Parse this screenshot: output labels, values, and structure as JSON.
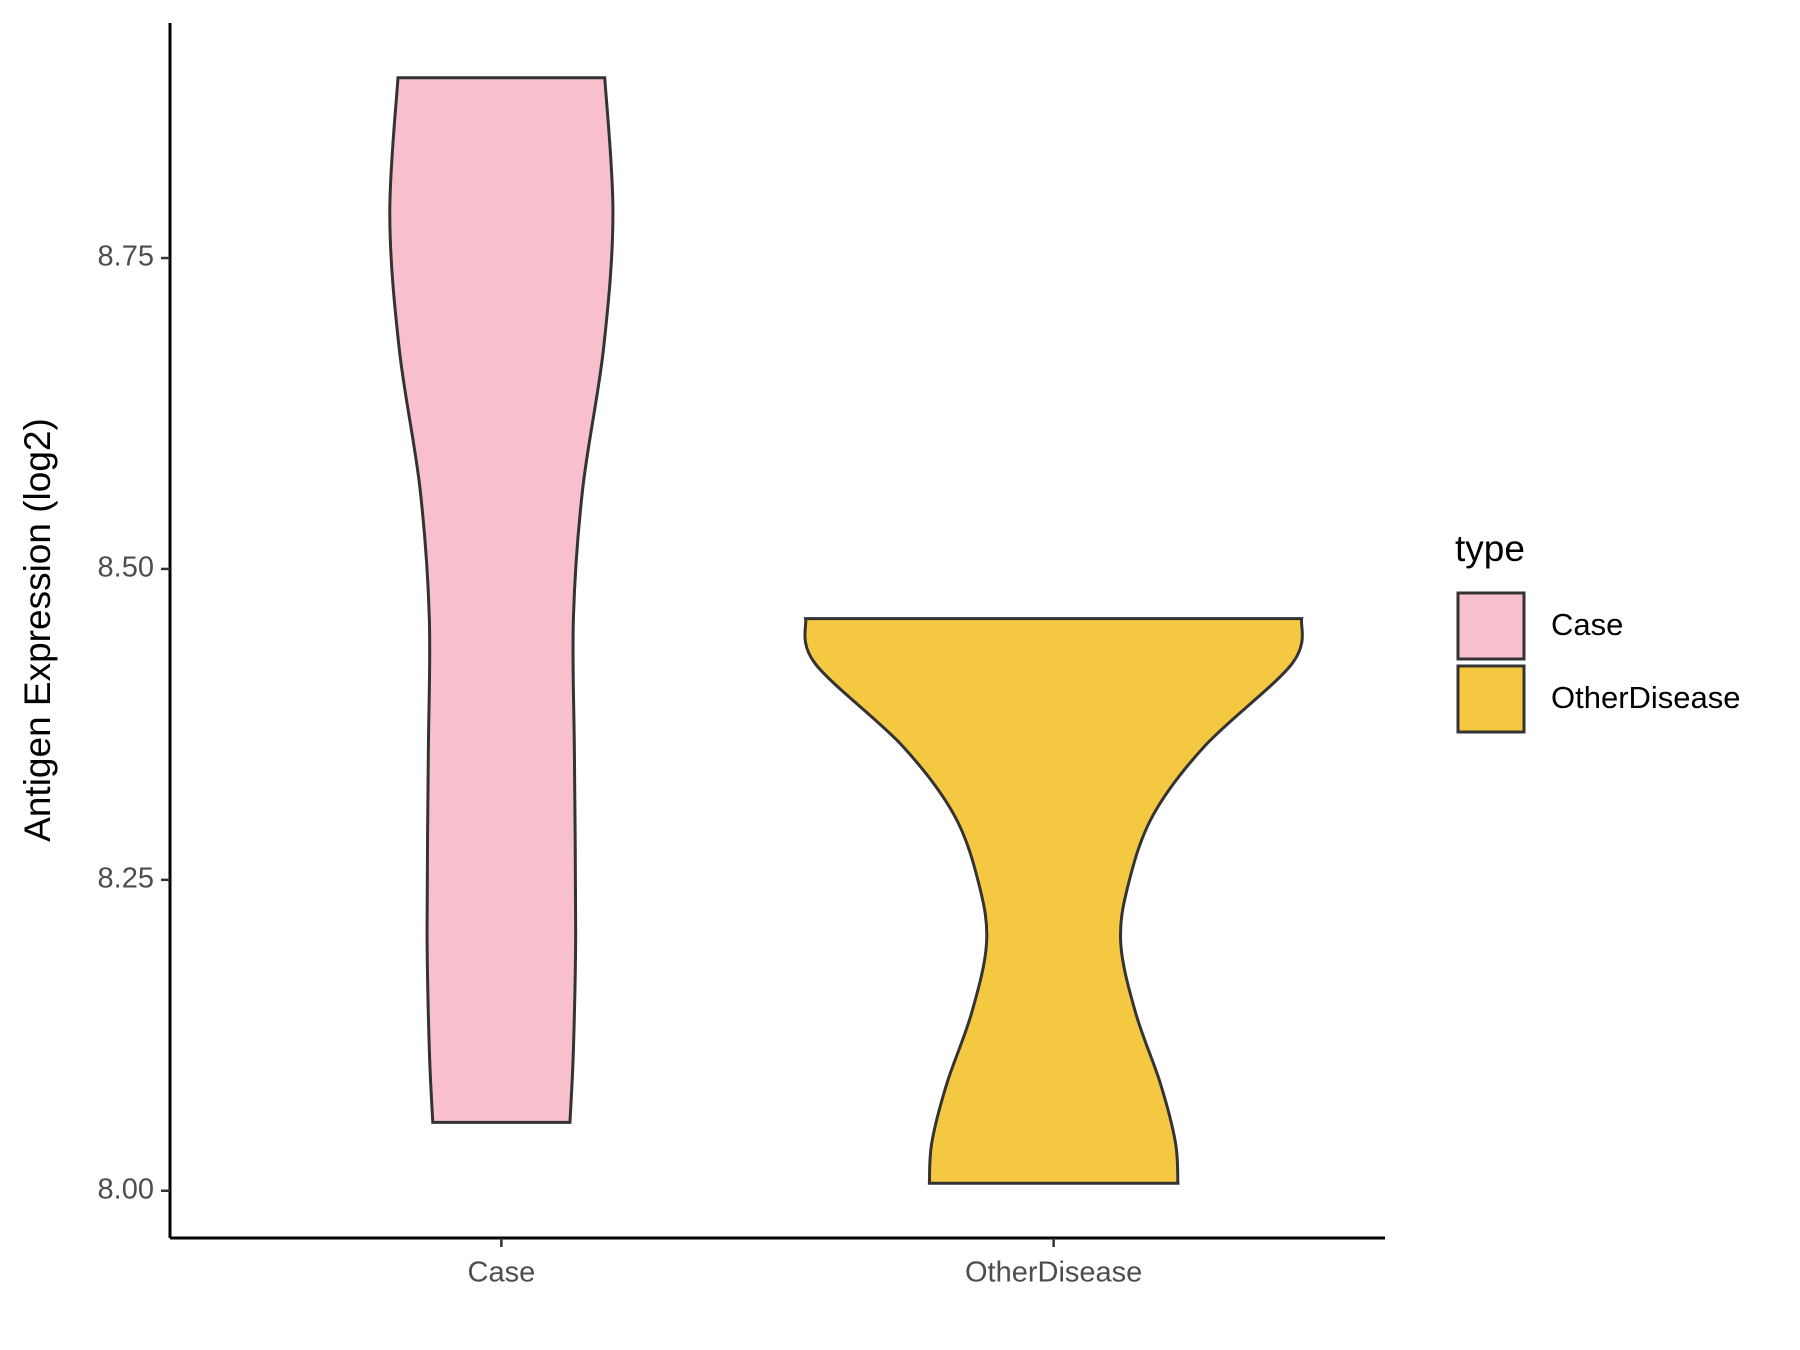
{
  "chart_data": {
    "type": "violin",
    "y_label": "Antigen Expression (log2)",
    "categories": [
      "Case",
      "OtherDisease"
    ],
    "legend_title": "type",
    "legend": "right",
    "ylim": [
      7.962,
      8.939
    ],
    "yticks": [
      {
        "value": 8,
        "label": "8.00"
      },
      8.25,
      {
        "value": 8.5,
        "label": "8.50"
      },
      8.75
    ],
    "series": [
      {
        "name": "Case",
        "color": "#f7c0cc",
        "y": [
          8.055,
          8.114,
          8.208,
          8.349,
          8.461,
          8.564,
          8.677,
          8.785,
          8.895
        ],
        "width": [
          0.276,
          0.29,
          0.299,
          0.294,
          0.29,
          0.327,
          0.411,
          0.449,
          0.416
        ]
      },
      {
        "name": "OtherDisease",
        "color": "#f5c842",
        "y": [
          8.006,
          8.039,
          8.086,
          8.143,
          8.199,
          8.246,
          8.302,
          8.358,
          8.424,
          8.46
        ],
        "width": [
          0.5,
          0.49,
          0.43,
          0.33,
          0.27,
          0.3,
          0.4,
          0.61,
          0.96,
          0.998
        ]
      }
    ]
  }
}
